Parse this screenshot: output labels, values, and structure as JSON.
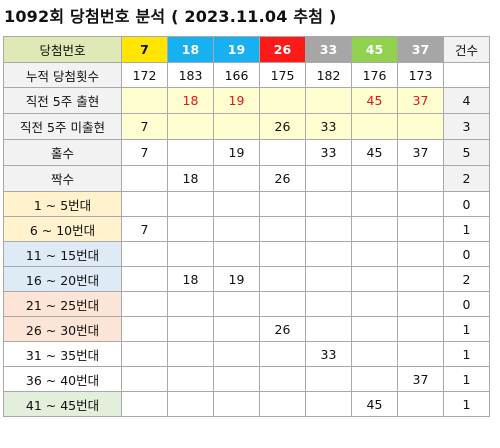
{
  "title": "1092회 당첨번호 분석 ( 2023.11.04 추첨 )",
  "header": {
    "label": "당첨번호",
    "count_label": "건수",
    "balls": [
      {
        "number": "7",
        "bg": "#ffe500",
        "fg": "#111111"
      },
      {
        "number": "18",
        "bg": "#17b1f2",
        "fg": "#ffffff"
      },
      {
        "number": "19",
        "bg": "#17b1f2",
        "fg": "#ffffff"
      },
      {
        "number": "26",
        "bg": "#ff1a1a",
        "fg": "#ffffff"
      },
      {
        "number": "33",
        "bg": "#a6a6a6",
        "fg": "#ffffff"
      },
      {
        "number": "45",
        "bg": "#92d050",
        "fg": "#ffffff"
      },
      {
        "number": "37",
        "bg": "#a6a6a6",
        "fg": "#ffffff"
      }
    ]
  },
  "cumulative": {
    "label": "누적 당첨횟수",
    "values": [
      "172",
      "183",
      "166",
      "175",
      "182",
      "176",
      "173"
    ]
  },
  "recent": [
    {
      "label": "직전 5주 출현",
      "values": [
        "",
        "18",
        "19",
        "",
        "",
        "45",
        "37"
      ],
      "count": "4",
      "red": true
    },
    {
      "label": "직전 5주 미출현",
      "values": [
        "7",
        "",
        "",
        "26",
        "33",
        "",
        ""
      ],
      "count": "3",
      "red": false
    }
  ],
  "parity": [
    {
      "label": "홀수",
      "values": [
        "7",
        "",
        "19",
        "",
        "33",
        "45",
        "37"
      ],
      "count": "5"
    },
    {
      "label": "짝수",
      "values": [
        "",
        "18",
        "",
        "26",
        "",
        "",
        ""
      ],
      "count": "2"
    }
  ],
  "ranges": [
    {
      "label": "1 ~ 5번대",
      "values": [
        "",
        "",
        "",
        "",
        "",
        "",
        ""
      ],
      "count": "0",
      "tone": "c1"
    },
    {
      "label": "6 ~ 10번대",
      "values": [
        "7",
        "",
        "",
        "",
        "",
        "",
        ""
      ],
      "count": "1",
      "tone": "c1"
    },
    {
      "label": "11 ~ 15번대",
      "values": [
        "",
        "",
        "",
        "",
        "",
        "",
        ""
      ],
      "count": "0",
      "tone": "c2"
    },
    {
      "label": "16 ~ 20번대",
      "values": [
        "",
        "18",
        "19",
        "",
        "",
        "",
        ""
      ],
      "count": "2",
      "tone": "c2"
    },
    {
      "label": "21 ~ 25번대",
      "values": [
        "",
        "",
        "",
        "",
        "",
        "",
        ""
      ],
      "count": "0",
      "tone": "c3"
    },
    {
      "label": "26 ~ 30번대",
      "values": [
        "",
        "",
        "",
        "26",
        "",
        "",
        ""
      ],
      "count": "1",
      "tone": "c3"
    },
    {
      "label": "31 ~ 35번대",
      "values": [
        "",
        "",
        "",
        "",
        "33",
        "",
        ""
      ],
      "count": "1",
      "tone": "c4"
    },
    {
      "label": "36 ~ 40번대",
      "values": [
        "",
        "",
        "",
        "",
        "",
        "",
        "37"
      ],
      "count": "1",
      "tone": "c4"
    },
    {
      "label": "41 ~ 45번대",
      "values": [
        "",
        "",
        "",
        "",
        "",
        "45",
        ""
      ],
      "count": "1",
      "tone": "c5"
    }
  ]
}
